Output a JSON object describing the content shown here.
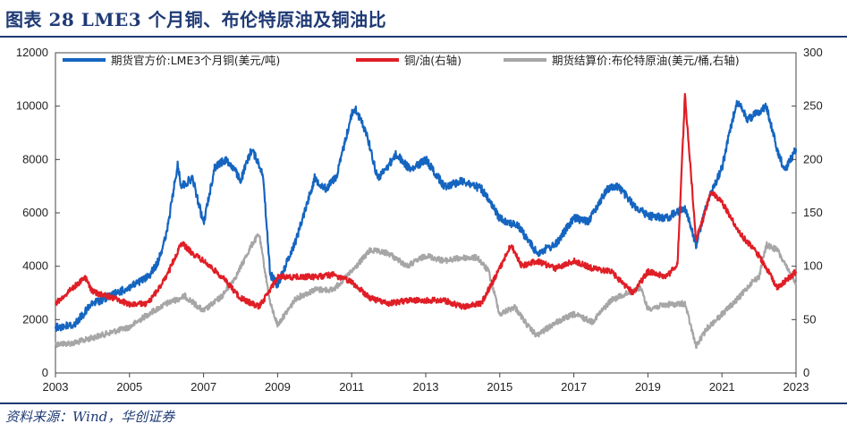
{
  "title": "图表 28  LME3 个月铜、布伦特原油及铜油比",
  "source": "资料来源：Wind，华创证券",
  "chart_data": {
    "type": "line",
    "x_ticks": [
      "2003",
      "2005",
      "2007",
      "2009",
      "2011",
      "2013",
      "2015",
      "2017",
      "2019",
      "2021",
      "2023"
    ],
    "xlim": [
      2003,
      2023
    ],
    "y_left": {
      "ylim": [
        0,
        12000
      ],
      "ticks": [
        "0",
        "2000",
        "4000",
        "6000",
        "8000",
        "10000",
        "12000"
      ]
    },
    "y_right": {
      "ylim": [
        0,
        300
      ],
      "ticks": [
        "0",
        "50",
        "100",
        "150",
        "200",
        "250",
        "300"
      ]
    },
    "legend_position": "top",
    "series": [
      {
        "name": "期货官方价:LME3个月铜(美元/吨)",
        "axis": "left",
        "color": "#1565c0",
        "x": [
          2003.0,
          2003.5,
          2004.0,
          2004.5,
          2005.0,
          2005.5,
          2005.75,
          2006.0,
          2006.3,
          2006.4,
          2006.7,
          2007.0,
          2007.3,
          2007.6,
          2007.8,
          2008.0,
          2008.3,
          2008.6,
          2008.8,
          2009.0,
          2009.5,
          2010.0,
          2010.3,
          2010.6,
          2011.0,
          2011.1,
          2011.4,
          2011.7,
          2011.9,
          2012.2,
          2012.6,
          2013.0,
          2013.5,
          2014.0,
          2014.5,
          2015.0,
          2015.5,
          2016.0,
          2016.5,
          2017.0,
          2017.4,
          2017.9,
          2018.2,
          2018.6,
          2019.0,
          2019.5,
          2020.0,
          2020.3,
          2020.6,
          2021.0,
          2021.4,
          2021.7,
          2022.0,
          2022.2,
          2022.5,
          2022.7,
          2023.0
        ],
        "y": [
          1700,
          1800,
          2600,
          2900,
          3200,
          3600,
          4100,
          5200,
          7800,
          7000,
          7300,
          5600,
          7700,
          8000,
          7700,
          7200,
          8400,
          7500,
          3700,
          3300,
          5000,
          7300,
          6900,
          7400,
          9700,
          9900,
          9000,
          7300,
          7600,
          8200,
          7600,
          8000,
          7000,
          7200,
          6900,
          5800,
          5500,
          4500,
          4800,
          5800,
          5700,
          6900,
          7000,
          6300,
          5900,
          5800,
          6200,
          4800,
          6400,
          7700,
          10200,
          9500,
          9800,
          10000,
          8300,
          7600,
          8400
        ]
      },
      {
        "name": "铜/油(右轴)",
        "axis": "right",
        "color": "#e01e26",
        "x": [
          2003.0,
          2003.8,
          2004.0,
          2004.6,
          2005.0,
          2005.5,
          2006.0,
          2006.4,
          2006.7,
          2007.0,
          2007.5,
          2008.0,
          2008.5,
          2008.8,
          2009.0,
          2009.5,
          2010.0,
          2010.5,
          2011.0,
          2011.5,
          2012.0,
          2012.5,
          2013.0,
          2013.5,
          2014.0,
          2014.5,
          2015.0,
          2015.3,
          2015.6,
          2016.0,
          2016.5,
          2017.0,
          2017.5,
          2018.0,
          2018.6,
          2019.0,
          2019.5,
          2019.8,
          2020.0,
          2020.3,
          2020.5,
          2020.7,
          2021.0,
          2021.5,
          2022.0,
          2022.5,
          2023.0
        ],
        "y": [
          65,
          90,
          76,
          70,
          64,
          65,
          90,
          122,
          112,
          105,
          90,
          70,
          62,
          78,
          90,
          90,
          90,
          92,
          85,
          70,
          65,
          68,
          68,
          68,
          62,
          65,
          98,
          120,
          100,
          105,
          98,
          105,
          98,
          95,
          75,
          95,
          90,
          102,
          260,
          125,
          145,
          170,
          160,
          130,
          110,
          80,
          95
        ]
      },
      {
        "name": "期货结算价:布伦特原油(美元/桶,右轴)",
        "axis": "right",
        "color": "#a6a6a6",
        "x": [
          2003.0,
          2003.5,
          2004.0,
          2004.5,
          2005.0,
          2005.5,
          2006.0,
          2006.5,
          2007.0,
          2007.5,
          2007.9,
          2008.3,
          2008.5,
          2008.8,
          2009.0,
          2009.5,
          2010.0,
          2010.5,
          2011.0,
          2011.5,
          2012.0,
          2012.5,
          2013.0,
          2013.5,
          2014.0,
          2014.4,
          2014.7,
          2015.0,
          2015.4,
          2015.8,
          2016.0,
          2016.5,
          2017.0,
          2017.5,
          2018.0,
          2018.8,
          2019.0,
          2019.5,
          2020.0,
          2020.3,
          2020.6,
          2021.0,
          2021.5,
          2021.8,
          2022.0,
          2022.2,
          2022.5,
          2022.8,
          2023.0
        ],
        "y": [
          27,
          28,
          33,
          38,
          43,
          55,
          65,
          72,
          58,
          72,
          92,
          120,
          130,
          65,
          45,
          70,
          78,
          78,
          95,
          115,
          112,
          100,
          110,
          105,
          108,
          108,
          95,
          55,
          62,
          42,
          35,
          47,
          55,
          48,
          68,
          80,
          60,
          64,
          65,
          25,
          42,
          55,
          72,
          85,
          90,
          120,
          115,
          95,
          85
        ]
      }
    ]
  }
}
